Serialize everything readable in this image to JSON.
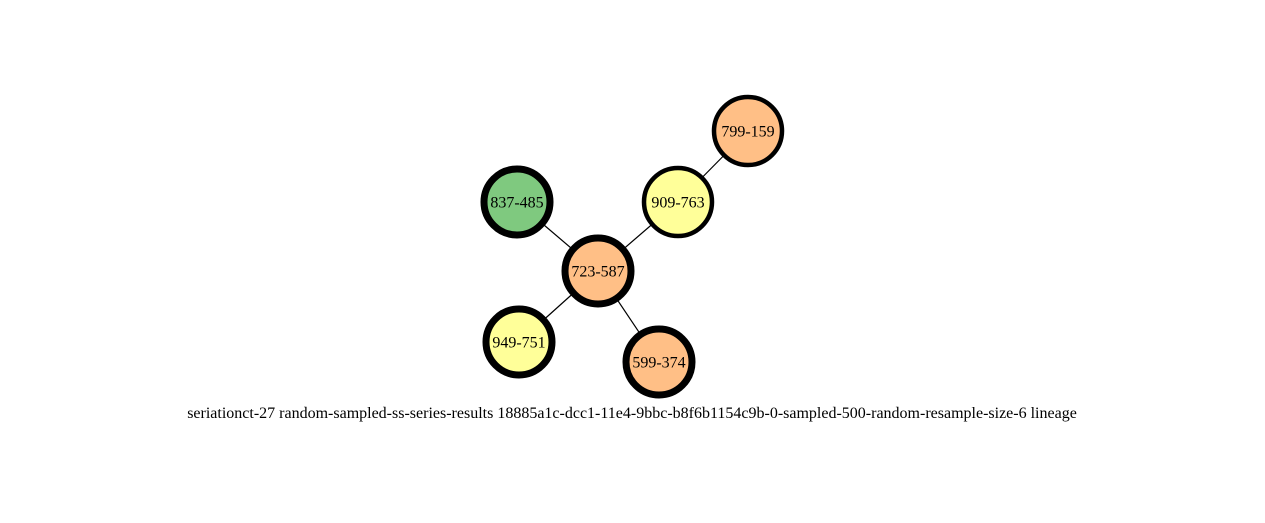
{
  "graph": {
    "caption": "seriationct-27  random-sampled-ss-series-results  18885a1c-dcc1-11e4-9bbc-b8f6b1154c9b-0-sampled-500-random-resample-size-6  lineage",
    "colors": {
      "orange": "#ffbf86",
      "yellow": "#ffff99",
      "green": "#7fc97f",
      "stroke": "#000000"
    },
    "nodes": [
      {
        "id": "723-587",
        "label": "723-587",
        "color": "orange",
        "border": "thick"
      },
      {
        "id": "837-485",
        "label": "837-485",
        "color": "green",
        "border": "thick"
      },
      {
        "id": "909-763",
        "label": "909-763",
        "color": "yellow",
        "border": "medium"
      },
      {
        "id": "799-159",
        "label": "799-159",
        "color": "orange",
        "border": "medium"
      },
      {
        "id": "949-751",
        "label": "949-751",
        "color": "yellow",
        "border": "thick"
      },
      {
        "id": "599-374",
        "label": "599-374",
        "color": "orange",
        "border": "thick"
      }
    ],
    "edges": [
      {
        "source": "723-587",
        "target": "837-485"
      },
      {
        "source": "723-587",
        "target": "909-763"
      },
      {
        "source": "909-763",
        "target": "799-159"
      },
      {
        "source": "723-587",
        "target": "949-751"
      },
      {
        "source": "723-587",
        "target": "599-374"
      }
    ]
  }
}
